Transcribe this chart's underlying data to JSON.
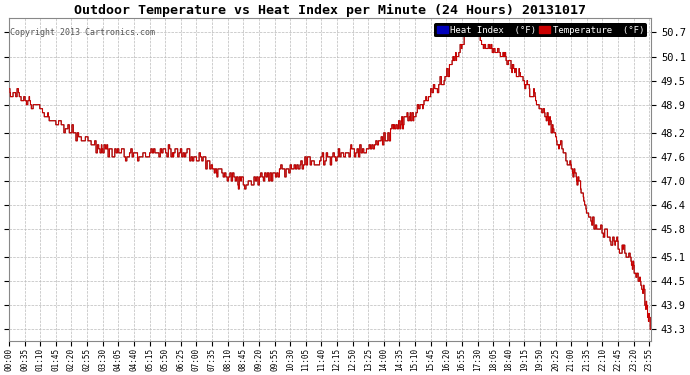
{
  "title": "Outdoor Temperature vs Heat Index per Minute (24 Hours) 20131017",
  "copyright": "Copyright 2013 Cartronics.com",
  "heat_index_label": "Heat Index  (°F)",
  "temp_label": "Temperature  (°F)",
  "heat_index_bg": "#0000bb",
  "temp_bg": "#cc0000",
  "line_color": "#cc0000",
  "heat_line_color": "#333333",
  "background_color": "#ffffff",
  "plot_bg_color": "#ffffff",
  "grid_color": "#bbbbbb",
  "ylim_min": 43.0,
  "ylim_max": 51.05,
  "yticks": [
    43.3,
    43.9,
    44.5,
    45.1,
    45.8,
    46.4,
    47.0,
    47.6,
    48.2,
    48.9,
    49.5,
    50.1,
    50.7
  ],
  "xtick_labels": [
    "00:00",
    "00:35",
    "01:10",
    "01:45",
    "02:20",
    "02:55",
    "03:30",
    "04:05",
    "04:40",
    "05:15",
    "05:50",
    "06:25",
    "07:00",
    "07:35",
    "08:10",
    "08:45",
    "09:20",
    "09:55",
    "10:30",
    "11:05",
    "11:40",
    "12:15",
    "12:50",
    "13:25",
    "14:00",
    "14:35",
    "15:10",
    "15:45",
    "16:20",
    "16:55",
    "17:30",
    "18:05",
    "18:40",
    "19:15",
    "19:50",
    "20:25",
    "21:00",
    "21:35",
    "22:10",
    "22:45",
    "23:20",
    "23:55"
  ],
  "n_points": 1440,
  "figwidth": 6.9,
  "figheight": 3.75,
  "dpi": 100
}
